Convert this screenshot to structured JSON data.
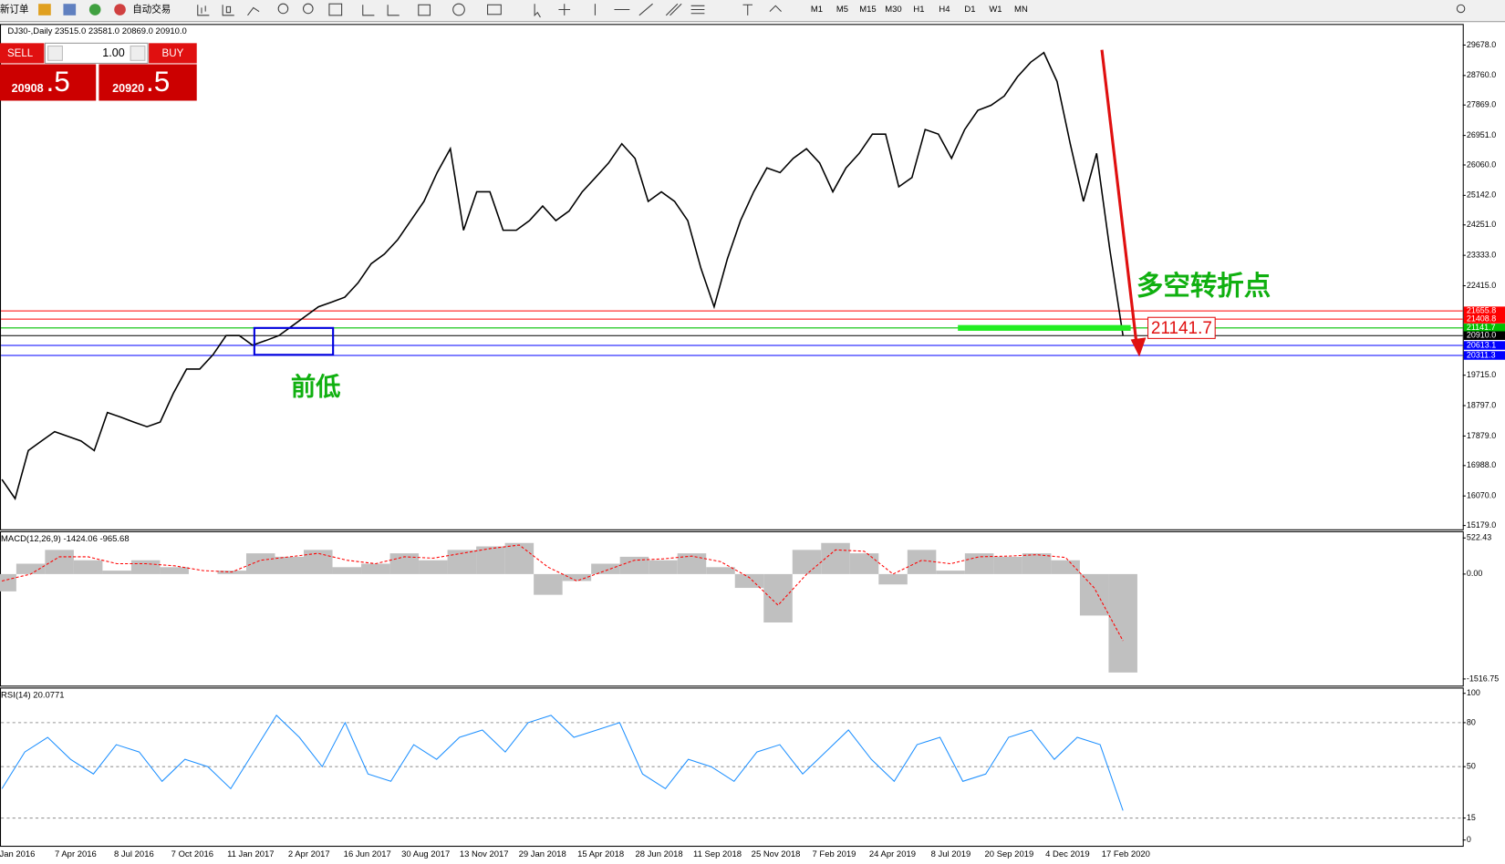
{
  "toolbar": {
    "new_order": "新订单",
    "auto_trading": "自动交易",
    "timeframes": [
      "M1",
      "M5",
      "M15",
      "M30",
      "H1",
      "H4",
      "D1",
      "W1",
      "MN"
    ]
  },
  "trade_panel": {
    "sell": "SELL",
    "lots": "1.00",
    "buy": "BUY",
    "sell_price": "20908",
    "sell_pip": ".5",
    "buy_price": "20920",
    "buy_pip": ".5"
  },
  "time_axis": [
    "Jan 2016",
    "7 Apr 2016",
    "8 Jul 2016",
    "7 Oct 2016",
    "11 Jan 2017",
    "2 Apr 2017",
    "16 Jun 2017",
    "30 Aug 2017",
    "13 Nov 2017",
    "29 Jan 2018",
    "15 Apr 2018",
    "28 Jun 2018",
    "11 Sep 2018",
    "25 Nov 2018",
    "7 Feb 2019",
    "24 Apr 2019",
    "8 Jul 2019",
    "20 Sep 2019",
    "4 Dec 2019",
    "17 Feb 2020"
  ],
  "chart_data": [
    {
      "type": "line",
      "title": "DJ30-,Daily 23515.0 23581.0 20869.0 20910.0",
      "color": "#000000",
      "values": [
        16570,
        15990,
        17440,
        17730,
        18010,
        17870,
        17730,
        17440,
        18590,
        18450,
        18300,
        18160,
        18300,
        19170,
        19900,
        19900,
        20330,
        20910,
        20910,
        20620,
        20760,
        20910,
        21200,
        21490,
        21780,
        21920,
        22070,
        22500,
        23080,
        23370,
        23800,
        24380,
        24960,
        25830,
        26550,
        24090,
        25250,
        25250,
        24090,
        24090,
        24380,
        24820,
        24380,
        24670,
        25250,
        25680,
        26120,
        26700,
        26260,
        24960,
        25250,
        24960,
        24380,
        22940,
        21780,
        23220,
        24380,
        25250,
        25970,
        25830,
        26260,
        26550,
        26120,
        25250,
        25970,
        26410,
        26990,
        26990,
        25400,
        25680,
        27130,
        26990,
        26260,
        27130,
        27710,
        27860,
        28140,
        28720,
        29160,
        29450,
        28580,
        26700,
        24960,
        26410,
        23510,
        20910
      ],
      "ylim": [
        15179,
        29678
      ],
      "yticks": [
        {
          "value": 29678,
          "label": "29678.0"
        },
        {
          "value": 28760,
          "label": "28760.0"
        },
        {
          "value": 27869,
          "label": "27869.0"
        },
        {
          "value": 26951,
          "label": "26951.0"
        },
        {
          "value": 26060,
          "label": "26060.0"
        },
        {
          "value": 25142,
          "label": "25142.0"
        },
        {
          "value": 24251,
          "label": "24251.0"
        },
        {
          "value": 23333,
          "label": "23333.0"
        },
        {
          "value": 22415,
          "label": "22415.0"
        },
        {
          "value": 19715,
          "label": "19715.0"
        },
        {
          "value": 18797,
          "label": "18797.0"
        },
        {
          "value": 17879,
          "label": "17879.0"
        },
        {
          "value": 16988,
          "label": "16988.0"
        },
        {
          "value": 16070,
          "label": "16070.0"
        },
        {
          "value": 15179,
          "label": "15179.0"
        }
      ],
      "levels": [
        {
          "price": 21655.8,
          "color": "#ff0000"
        },
        {
          "price": 21408.8,
          "color": "#ff0000"
        },
        {
          "price": 21141.7,
          "color": "#00c000"
        },
        {
          "price": {
            "value": 20910,
            "label": "20910.0"
          },
          "color": "#000000"
        },
        {
          "price": 20613.1,
          "color": "#0000ff"
        },
        {
          "price": 20311.3,
          "color": "#0000ff"
        }
      ],
      "annotations": {
        "turning_point": "多空转折点",
        "previous_low": "前低"
      }
    },
    {
      "type": "bar",
      "title": "MACD(12,26,9) -1424.06 -965.68",
      "color": "#c0c0c0",
      "signal_color": "#ff0000",
      "values": [
        -250,
        150,
        350,
        200,
        50,
        200,
        100,
        0,
        50,
        300,
        250,
        350,
        100,
        150,
        300,
        200,
        350,
        400,
        450,
        -300,
        -100,
        150,
        250,
        200,
        300,
        100,
        -200,
        -700,
        350,
        450,
        300,
        -150,
        350,
        50,
        300,
        250,
        300,
        200,
        -600,
        -1424.06
      ],
      "signal": [
        -100,
        0,
        250,
        250,
        150,
        150,
        120,
        50,
        30,
        200,
        250,
        300,
        200,
        150,
        250,
        230,
        300,
        370,
        420,
        100,
        -100,
        50,
        200,
        220,
        260,
        180,
        -50,
        -450,
        0,
        350,
        330,
        0,
        200,
        150,
        250,
        260,
        280,
        240,
        -200,
        -965.68
      ],
      "ylim": [
        -1516.75,
        522.43
      ],
      "yticks": [
        522.43,
        {
          "value": 0,
          "label": "0.00"
        },
        -1516.75
      ]
    },
    {
      "type": "line",
      "title": "RSI(14) 20.0771",
      "color": "#1e90ff",
      "values": [
        35,
        60,
        70,
        55,
        45,
        65,
        60,
        40,
        55,
        50,
        35,
        60,
        85,
        70,
        50,
        80,
        45,
        40,
        65,
        55,
        70,
        75,
        60,
        80,
        85,
        70,
        75,
        80,
        45,
        35,
        55,
        50,
        40,
        60,
        65,
        45,
        60,
        75,
        55,
        40,
        65,
        70,
        40,
        45,
        70,
        75,
        55,
        70,
        65,
        20.0771
      ],
      "ylim": [
        0,
        100
      ],
      "yticks": [
        100,
        80,
        50,
        15,
        0
      ]
    }
  ]
}
